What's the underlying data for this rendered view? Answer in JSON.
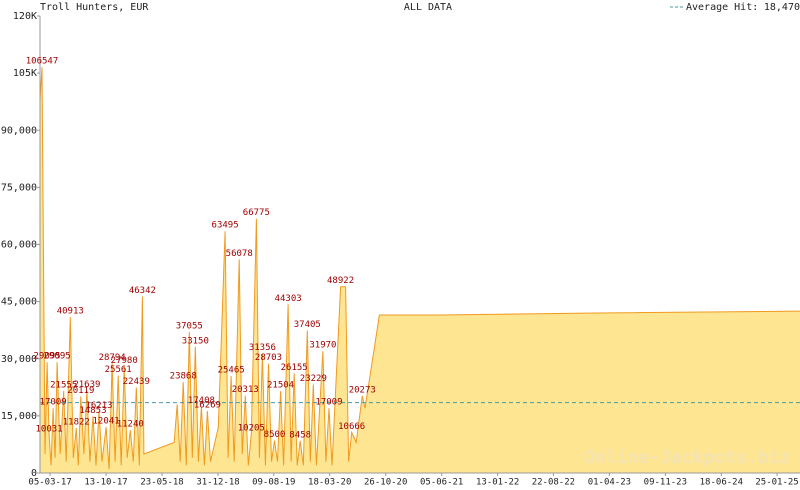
{
  "chart_data": {
    "type": "area",
    "title": "Troll Hunters, EUR",
    "subtitle": "ALL DATA",
    "average_label": "Average Hit:",
    "average": {
      "value": 18470,
      "label": "18,470"
    },
    "average_color": "#4a9aa0",
    "watermark": "Online-Jackpots.biz",
    "fill_color": "#fde592",
    "line_color": "#f09a20",
    "label_color": "#a00000",
    "ylim": [
      0,
      120000
    ],
    "yticks": [
      0,
      {
        "value": 15000,
        "label": "15,000"
      },
      {
        "value": 30000,
        "label": "30,000"
      },
      {
        "value": 45000,
        "label": "45,000"
      },
      {
        "value": 60000,
        "label": "60,000"
      },
      {
        "value": 75000,
        "label": "75,000"
      },
      {
        "value": 90000,
        "label": "90,000"
      },
      {
        "value": 105000,
        "label": "105K"
      },
      {
        "value": 120000,
        "label": "120K"
      }
    ],
    "xlim": [
      "24-01-17",
      "26-04-25"
    ],
    "xticks": [
      "05-03-17",
      "13-10-17",
      "23-05-18",
      "31-12-18",
      "09-08-19",
      "18-03-20",
      "26-10-20",
      "05-06-21",
      "13-01-22",
      "22-08-22",
      "01-04-23",
      "09-11-23",
      "18-06-24",
      "25-01-25"
    ],
    "x": [
      "24-01-17",
      "01-02-17",
      "13-02-17",
      "21-02-17",
      "01-03-17",
      "09-03-17",
      "17-03-17",
      "25-03-17",
      "02-04-17",
      "14-04-17",
      "28-04-17",
      "08-05-17",
      "24-05-17",
      "05-06-17",
      "17-06-17",
      "25-06-17",
      "05-07-17",
      "17-07-17",
      "29-07-17",
      "10-08-17",
      "22-08-17",
      "03-09-17",
      "15-09-17",
      "27-09-17",
      "13-10-17",
      "25-10-17",
      "06-11-17",
      "18-11-17",
      "30-11-17",
      "12-12-17",
      "24-12-17",
      "05-01-18",
      "17-01-18",
      "29-01-18",
      "10-02-18",
      "22-02-18",
      "06-03-18",
      "12-03-18",
      "10-07-18",
      "22-07-18",
      "03-08-18",
      "15-08-18",
      "27-08-18",
      "08-09-18",
      "20-09-18",
      "02-10-18",
      "14-10-18",
      "26-10-18",
      "07-11-18",
      "19-11-18",
      "01-12-18",
      "01-01-19",
      "28-01-19",
      "09-02-19",
      "21-02-19",
      "05-03-19",
      "25-03-19",
      "06-04-19",
      "18-04-19",
      "30-04-19",
      "12-05-19",
      "01-06-19",
      "13-06-19",
      "25-06-19",
      "07-07-19",
      "19-07-19",
      "31-07-19",
      "12-08-19",
      "24-08-19",
      "05-09-19",
      "17-09-19",
      "05-10-19",
      "17-10-19",
      "29-10-19",
      "10-11-19",
      "22-11-19",
      "04-12-19",
      "20-12-19",
      "01-01-20",
      "13-01-20",
      "25-01-20",
      "20-02-20",
      "03-03-20",
      "15-03-20",
      "27-03-20",
      "30-04-20",
      "20-05-20",
      "01-06-20",
      "13-06-20",
      "01-07-20",
      "25-07-20",
      "05-08-20",
      "01-10-20",
      "01-06-21",
      "01-01-23",
      "26-04-25"
    ],
    "values": [
      98000,
      106547,
      5000,
      29095,
      10031,
      2000,
      17009,
      4000,
      29095,
      5000,
      21555,
      3000,
      40913,
      4000,
      11822,
      2000,
      20119,
      5000,
      21639,
      3000,
      14853,
      2000,
      16213,
      3000,
      12041,
      1000,
      28794,
      3000,
      25561,
      2000,
      27980,
      4000,
      11240,
      3000,
      22439,
      2000,
      46342,
      5000,
      8000,
      18000,
      3000,
      23868,
      2000,
      37055,
      4000,
      33150,
      3000,
      17408,
      2000,
      16269,
      3000,
      12000,
      63495,
      4000,
      25465,
      3000,
      56078,
      5000,
      20313,
      2000,
      10205,
      66775,
      4000,
      31356,
      2000,
      28703,
      3000,
      8500,
      3000,
      21504,
      2000,
      44303,
      3000,
      26155,
      2000,
      8458,
      2000,
      37405,
      3000,
      23229,
      2000,
      31970,
      3000,
      17009,
      2000,
      48922,
      48922,
      3000,
      10666,
      8000,
      20273,
      17000,
      41500,
      41500,
      42000,
      42500
    ],
    "value_labels": [
      null,
      "106547",
      null,
      "29095",
      "10031",
      null,
      "17009",
      null,
      "29095",
      null,
      "21555",
      null,
      "40913",
      null,
      "11822",
      null,
      "20119",
      null,
      "21639",
      null,
      "14853",
      null,
      "16213",
      null,
      "12041",
      null,
      "28794",
      null,
      "25561",
      null,
      "27980",
      null,
      "11240",
      null,
      "22439",
      null,
      "46342",
      null,
      null,
      null,
      null,
      "23868",
      null,
      "37055",
      null,
      "33150",
      null,
      "17408",
      null,
      "16269",
      null,
      null,
      "63495",
      null,
      "25465",
      null,
      "56078",
      null,
      "20313",
      null,
      "10205",
      "66775",
      null,
      "31356",
      null,
      "28703",
      null,
      "8500",
      null,
      "21504",
      null,
      "44303",
      null,
      "26155",
      null,
      "8458",
      null,
      "37405",
      null,
      "23229",
      null,
      "31970",
      null,
      "17009",
      null,
      "48922",
      null,
      null,
      "10666",
      null,
      "20273",
      null,
      null,
      null,
      null,
      null
    ]
  }
}
